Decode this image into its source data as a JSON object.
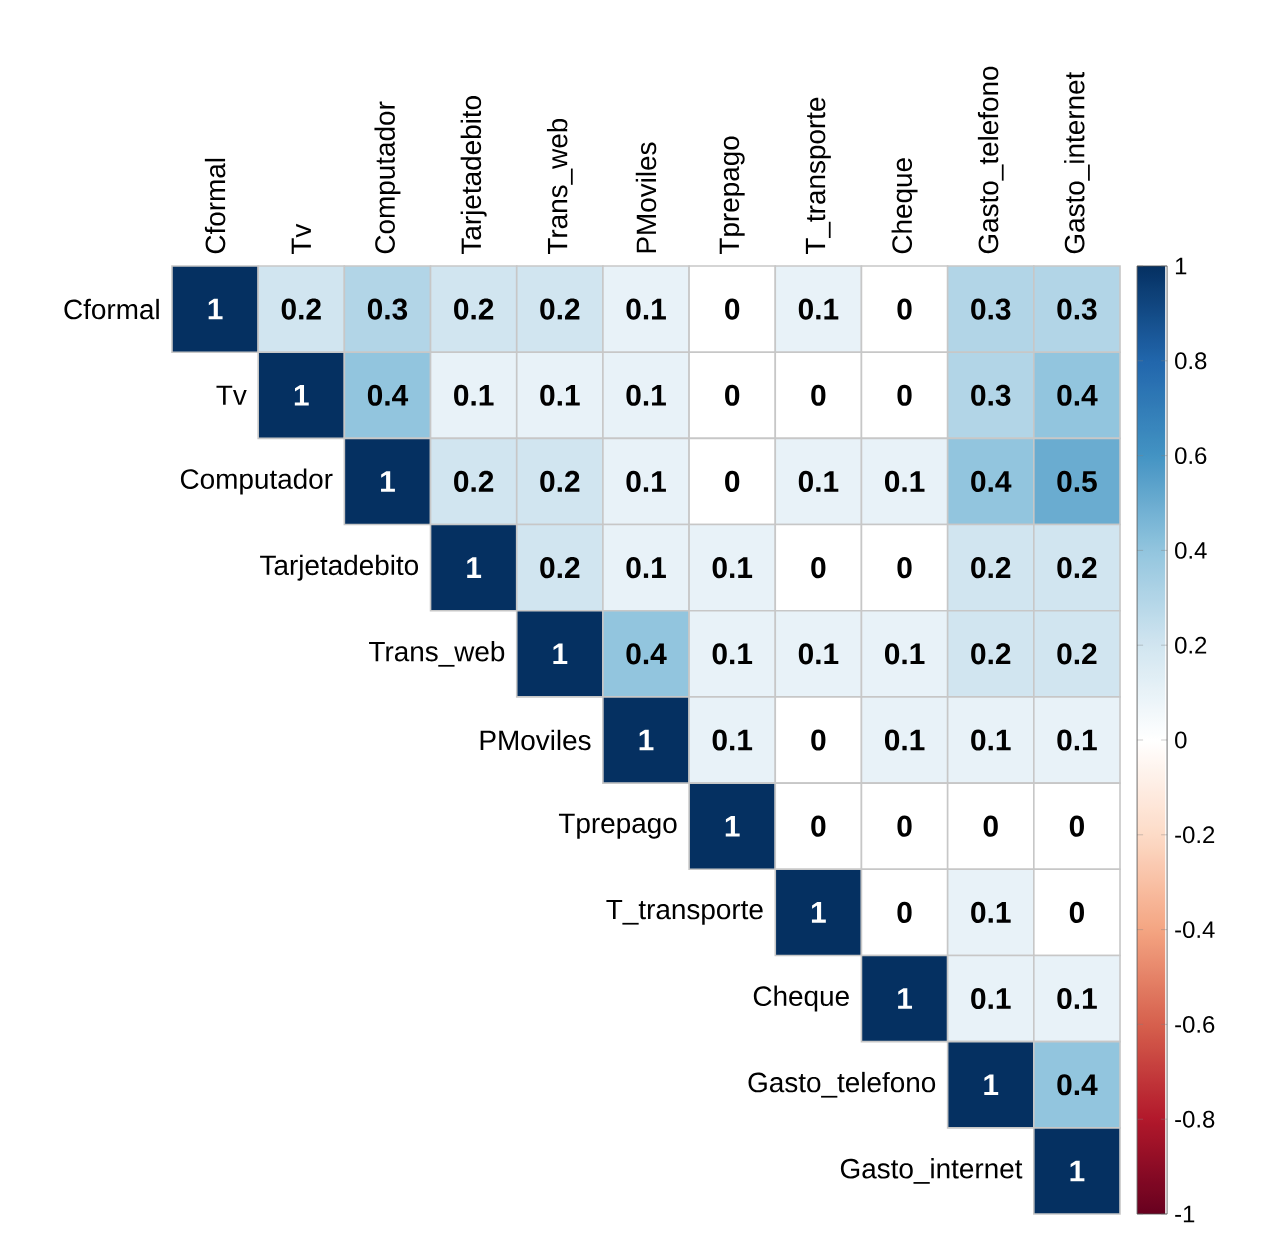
{
  "chart_data": {
    "type": "heatmap",
    "categories": [
      "Cformal",
      "Tv",
      "Computador",
      "Tarjetadebito",
      "Trans_web",
      "PMoviles",
      "Tprepago",
      "T_transporte",
      "Cheque",
      "Gasto_telefono",
      "Gasto_internet"
    ],
    "y_categories": [
      "Cformal",
      "Tv",
      "Computador",
      "Tarjetadebito",
      "Trans_web",
      "PMoviles",
      "Tprepago",
      "T_transporte",
      "Cheque",
      "Gasto_telefono",
      "Gasto_internet"
    ],
    "cells": [
      [
        1,
        0.2,
        0.3,
        0.2,
        0.2,
        0.1,
        0,
        0.1,
        0,
        0.3,
        0.3
      ],
      [
        null,
        1,
        0.4,
        0.1,
        0.1,
        0.1,
        0,
        0,
        0,
        0.3,
        0.4
      ],
      [
        null,
        null,
        1,
        0.2,
        0.2,
        0.1,
        0,
        0.1,
        0.1,
        0.4,
        0.5
      ],
      [
        null,
        null,
        null,
        1,
        0.2,
        0.1,
        0.1,
        0,
        0,
        0.2,
        0.2
      ],
      [
        null,
        null,
        null,
        null,
        1,
        0.4,
        0.1,
        0.1,
        0.1,
        0.2,
        0.2
      ],
      [
        null,
        null,
        null,
        null,
        null,
        1,
        0.1,
        0,
        0.1,
        0.1,
        0.1
      ],
      [
        null,
        null,
        null,
        null,
        null,
        null,
        1,
        0,
        0,
        0,
        0
      ],
      [
        null,
        null,
        null,
        null,
        null,
        null,
        null,
        1,
        0,
        0.1,
        0
      ],
      [
        null,
        null,
        null,
        null,
        null,
        null,
        null,
        null,
        1,
        0.1,
        0.1
      ],
      [
        null,
        null,
        null,
        null,
        null,
        null,
        null,
        null,
        null,
        1,
        0.4
      ],
      [
        null,
        null,
        null,
        null,
        null,
        null,
        null,
        null,
        null,
        null,
        1
      ]
    ],
    "clim": [
      -1,
      1
    ],
    "cticks": [
      -1,
      -0.8,
      -0.6,
      -0.4,
      -0.2,
      0,
      0.2,
      0.4,
      0.6,
      0.8,
      1
    ],
    "data_labels": true
  }
}
